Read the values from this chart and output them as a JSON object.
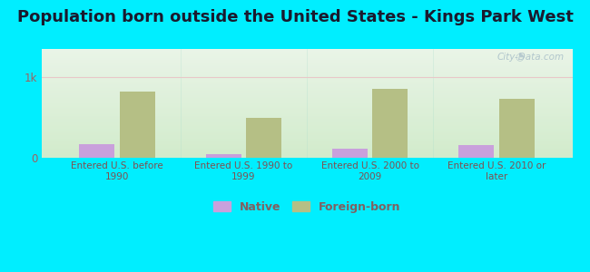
{
  "title": "Population born outside the United States - Kings Park West",
  "categories": [
    "Entered U.S. before\n1990",
    "Entered U.S. 1990 to\n1999",
    "Entered U.S. 2000 to\n2009",
    "Entered U.S. 2010 or\nlater"
  ],
  "native_values": [
    170,
    45,
    110,
    155
  ],
  "foreign_values": [
    820,
    500,
    860,
    730
  ],
  "native_color": "#c9a0dc",
  "foreign_color": "#b5bf85",
  "background_outer": "#00eeff",
  "plot_bg_top": "#eaf5e8",
  "plot_bg_bottom": "#c8e8c0",
  "ylim": [
    0,
    1350
  ],
  "ytick_labels": [
    "0",
    "1k"
  ],
  "ytick_values": [
    0,
    1000
  ],
  "bar_width": 0.28,
  "title_fontsize": 13,
  "tick_color": "#a06060",
  "label_color": "#805050",
  "watermark": "City-Data.com",
  "gridline_color": "#e8c8c8",
  "legend_label_color": "#806060"
}
